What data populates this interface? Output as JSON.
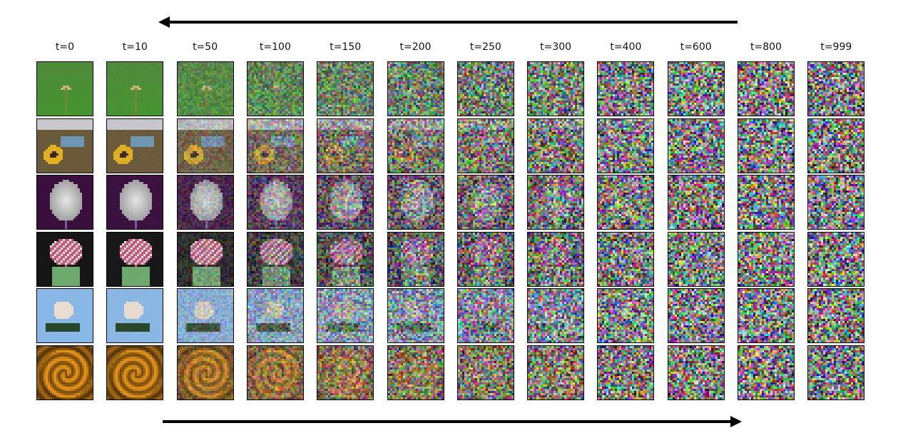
{
  "columns": [
    {
      "label": "t=0",
      "noise": 0.0
    },
    {
      "label": "t=10",
      "noise": 0.02
    },
    {
      "label": "t=50",
      "noise": 0.22
    },
    {
      "label": "t=100",
      "noise": 0.42
    },
    {
      "label": "t=150",
      "noise": 0.58
    },
    {
      "label": "t=200",
      "noise": 0.68
    },
    {
      "label": "t=250",
      "noise": 0.77
    },
    {
      "label": "t=300",
      "noise": 0.84
    },
    {
      "label": "t=400",
      "noise": 0.92
    },
    {
      "label": "t=600",
      "noise": 0.97
    },
    {
      "label": "t=800",
      "noise": 0.995
    },
    {
      "label": "t=999",
      "noise": 1.0
    }
  ],
  "rows": [
    {
      "subject": "dandelion-bud-on-green",
      "bg": "#4f8a3a",
      "fg": "#c8b37a",
      "shape": "bud"
    },
    {
      "subject": "sunflower-and-car",
      "bg": "#6b5a3a",
      "fg": "#e0b020",
      "shape": "sunflower"
    },
    {
      "subject": "white-dandelion-on-purple",
      "bg": "#3a0f3e",
      "fg": "#e6e6e6",
      "shape": "puff"
    },
    {
      "subject": "pink-flower-bouquet",
      "bg": "#161616",
      "fg": "#c8587a",
      "shape": "bouquet"
    },
    {
      "subject": "white-flowers-on-blue-sky",
      "bg": "#8ab8e6",
      "fg": "#e8ddd0",
      "shape": "cluster"
    },
    {
      "subject": "orange-rose",
      "bg": "#c9841a",
      "fg": "#e9a530",
      "shape": "rose"
    }
  ],
  "arrows": {
    "top_direction": "left",
    "bottom_direction": "right"
  }
}
